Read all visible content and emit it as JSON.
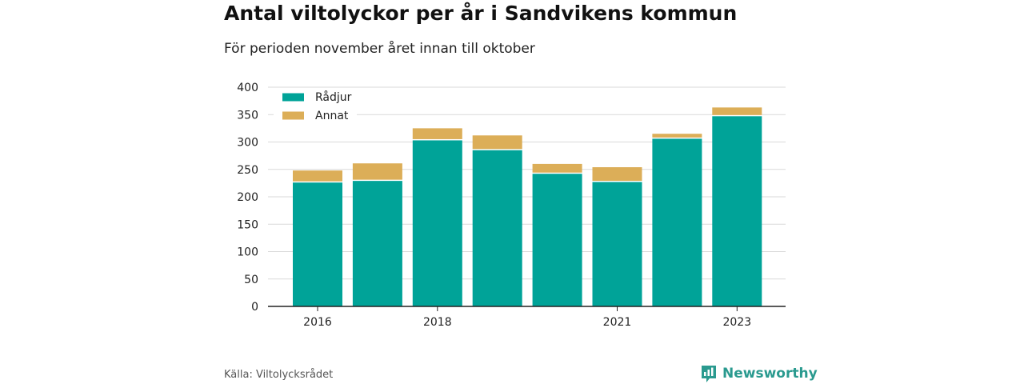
{
  "title": "Antal viltolyckor per år i Sandvikens kommun",
  "subtitle": "För perioden november året innan till oktober",
  "source": "Källa: Viltolycksrådet",
  "brand": {
    "name": "Newsworthy",
    "icon": "newsworthy-logo-icon"
  },
  "colors": {
    "radjur": "#00a398",
    "annat": "#dcae58",
    "grid": "#d9d9d9",
    "axis": "#222222"
  },
  "chart_data": {
    "type": "bar",
    "stacked": true,
    "categories": [
      2016,
      2017,
      2018,
      2019,
      2020,
      2021,
      2022,
      2023
    ],
    "tick_labels": [
      "2016",
      "",
      "2018",
      "",
      "",
      "2021",
      "",
      "2023"
    ],
    "series": [
      {
        "name": "Rådjur",
        "values": [
          226,
          229,
          303,
          285,
          242,
          227,
          306,
          347
        ]
      },
      {
        "name": "Annat",
        "values": [
          22,
          32,
          22,
          27,
          18,
          27,
          9,
          16
        ]
      }
    ],
    "ylim": [
      0,
      400
    ],
    "yticks": [
      0,
      50,
      100,
      150,
      200,
      250,
      300,
      350,
      400
    ],
    "grid": true,
    "legend_position": "top-left"
  }
}
